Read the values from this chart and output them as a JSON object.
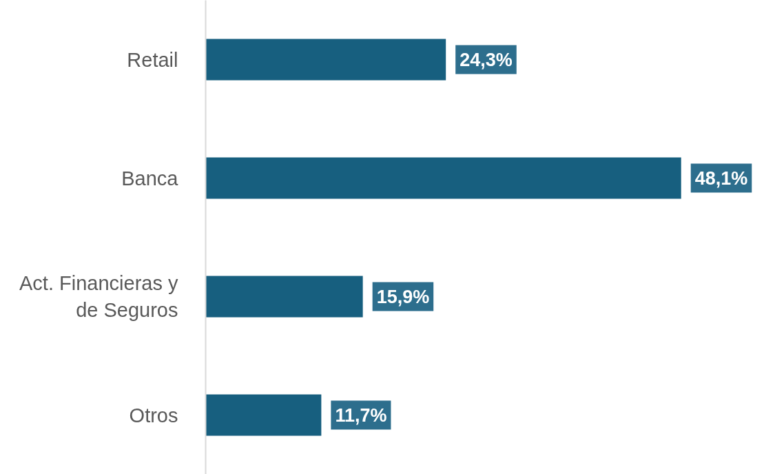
{
  "chart_data": {
    "type": "bar",
    "orientation": "horizontal",
    "categories": [
      "Retail",
      "Banca",
      "Act. Financieras y de Seguros",
      "Otros"
    ],
    "values": [
      24.3,
      48.1,
      15.9,
      11.7
    ],
    "color": "#175f7f",
    "value_labels": [
      "24,3%",
      "48,1%",
      "15,9%",
      "11,7%"
    ],
    "grid": false
  }
}
